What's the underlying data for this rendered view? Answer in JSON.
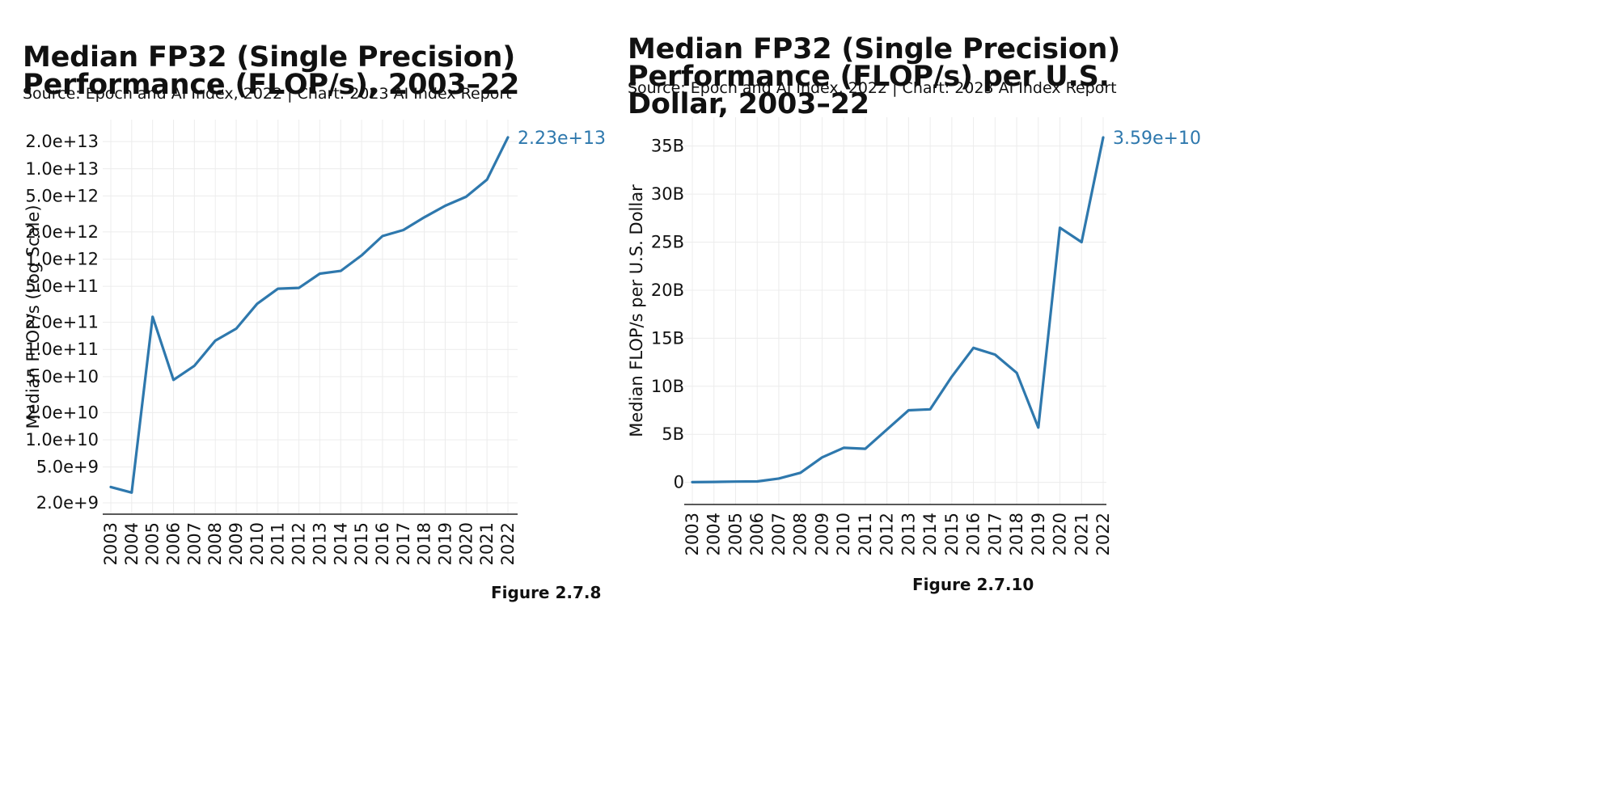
{
  "chart_data": [
    {
      "type": "line",
      "title": "Median FP32 (Single Precision) Performance (FLOP/s), 2003–22",
      "source": "Source: Epoch and AI Index, 2022 | Chart: 2023 AI Index Report",
      "xlabel": "",
      "ylabel": "Median FLOP/s (Log Scale)",
      "y_scale": "log",
      "ylim": [
        1500000000.0,
        35000000000000.0
      ],
      "y_ticks": [
        2000000000.0,
        5000000000.0,
        10000000000.0,
        20000000000.0,
        50000000000.0,
        100000000000.0,
        200000000000.0,
        500000000000.0,
        1000000000000.0,
        2000000000000.0,
        5000000000000.0,
        10000000000000.0,
        20000000000000.0
      ],
      "y_tick_labels": [
        "2.0e+9",
        "5.0e+9",
        "1.0e+10",
        "2.0e+10",
        "5.0e+10",
        "1.0e+11",
        "2.0e+11",
        "5.0e+11",
        "1.0e+12",
        "2.0e+12",
        "5.0e+12",
        "1.0e+13",
        "2.0e+13"
      ],
      "x": [
        "2003",
        "2004",
        "2005",
        "2006",
        "2007",
        "2008",
        "2009",
        "2010",
        "2011",
        "2012",
        "2013",
        "2014",
        "2015",
        "2016",
        "2017",
        "2018",
        "2019",
        "2020",
        "2021",
        "2022"
      ],
      "values": [
        3000000000.0,
        2600000000.0,
        230000000000.0,
        46000000000.0,
        66000000000.0,
        125000000000.0,
        170000000000.0,
        320000000000.0,
        470000000000.0,
        480000000000.0,
        690000000000.0,
        740000000000.0,
        1100000000000.0,
        1800000000000.0,
        2100000000000.0,
        2900000000000.0,
        3900000000000.0,
        4900000000000.0,
        7600000000000.0,
        22300000000000.0
      ],
      "end_label": "2.23e+13",
      "line_color": "#2e78ad",
      "grid": true,
      "figure_label": "Figure 2.7.8"
    },
    {
      "type": "line",
      "title": "Median FP32 (Single Precision) Performance (FLOP/s) per U.S. Dollar, 2003–22",
      "source": "Source: Epoch and AI Index, 2022 | Chart: 2023 AI Index Report",
      "xlabel": "",
      "ylabel": "Median FLOP/s per U.S. Dollar",
      "y_scale": "linear",
      "ylim": [
        -2300000000.0,
        38000000000.0
      ],
      "y_ticks": [
        0,
        5000000000.0,
        10000000000.0,
        15000000000.0,
        20000000000.0,
        25000000000.0,
        30000000000.0,
        35000000000.0
      ],
      "y_tick_labels": [
        "0",
        "5B",
        "10B",
        "15B",
        "20B",
        "25B",
        "30B",
        "35B"
      ],
      "x": [
        "2003",
        "2004",
        "2005",
        "2006",
        "2007",
        "2008",
        "2009",
        "2010",
        "2011",
        "2012",
        "2013",
        "2014",
        "2015",
        "2016",
        "2017",
        "2018",
        "2019",
        "2020",
        "2021",
        "2022"
      ],
      "values": [
        20000000.0,
        50000000.0,
        80000000.0,
        100000000.0,
        400000000.0,
        1000000000.0,
        2600000000.0,
        3600000000.0,
        3500000000.0,
        5500000000.0,
        7500000000.0,
        7600000000.0,
        11000000000.0,
        14000000000.0,
        13300000000.0,
        11400000000.0,
        5700000000.0,
        26500000000.0,
        25000000000.0,
        35900000000.0
      ],
      "end_label": "3.59e+10",
      "line_color": "#2e78ad",
      "grid": true,
      "figure_label": "Figure 2.7.10"
    }
  ]
}
